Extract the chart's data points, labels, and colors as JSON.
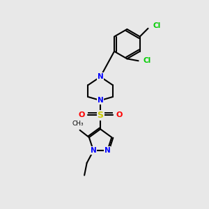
{
  "background_color": "#e8e8e8",
  "bond_color": "#000000",
  "bond_width": 1.5,
  "atom_colors": {
    "N": "#0000ff",
    "O": "#ff0000",
    "S": "#cccc00",
    "Cl": "#00cc00",
    "C": "#000000"
  },
  "font_size": 7.5,
  "fig_size": [
    3.0,
    3.0
  ],
  "dpi": 100,
  "xlim": [
    0,
    10
  ],
  "ylim": [
    0,
    10
  ]
}
